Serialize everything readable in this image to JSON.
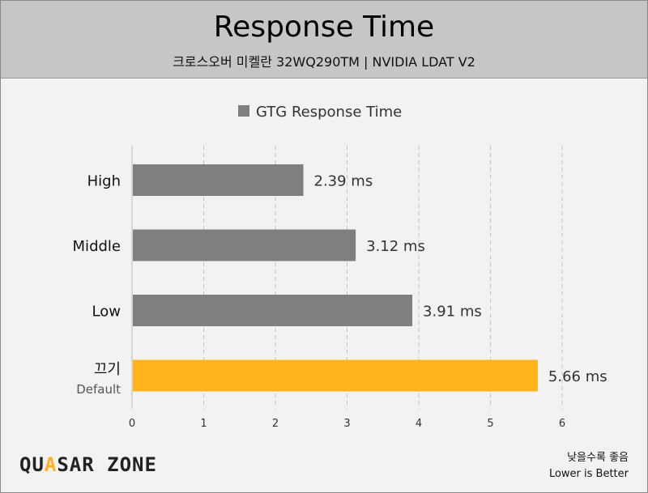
{
  "header": {
    "title": "Response Time",
    "subtitle": "크로스오버 미켈란 32WQ290TM  |  NVIDIA LDAT V2"
  },
  "footer": {
    "logo_prefix": "QU",
    "logo_accent": "A",
    "logo_rest": "SAR ZONE",
    "note_korean": "낮을수록 좋음",
    "note_english": "Lower is Better"
  },
  "chart_data": {
    "type": "bar",
    "orientation": "horizontal",
    "categories": [
      "High",
      "Middle",
      "Low",
      "끄기"
    ],
    "category_sublabels": [
      "",
      "",
      "",
      "Default"
    ],
    "series": [
      {
        "name": "GTG Response Time",
        "values": [
          2.39,
          3.12,
          3.91,
          5.66
        ],
        "value_labels": [
          "2.39 ms",
          "3.12 ms",
          "3.91 ms",
          "5.66 ms"
        ],
        "colors": [
          "#7f7f7f",
          "#7f7f7f",
          "#7f7f7f",
          "#ffb31c"
        ]
      }
    ],
    "legend_color": "#7f7f7f",
    "xlim": [
      0,
      6
    ],
    "xticks": [
      0,
      1,
      2,
      3,
      4,
      5,
      6
    ],
    "grid": true,
    "legend_position": "top-center"
  }
}
